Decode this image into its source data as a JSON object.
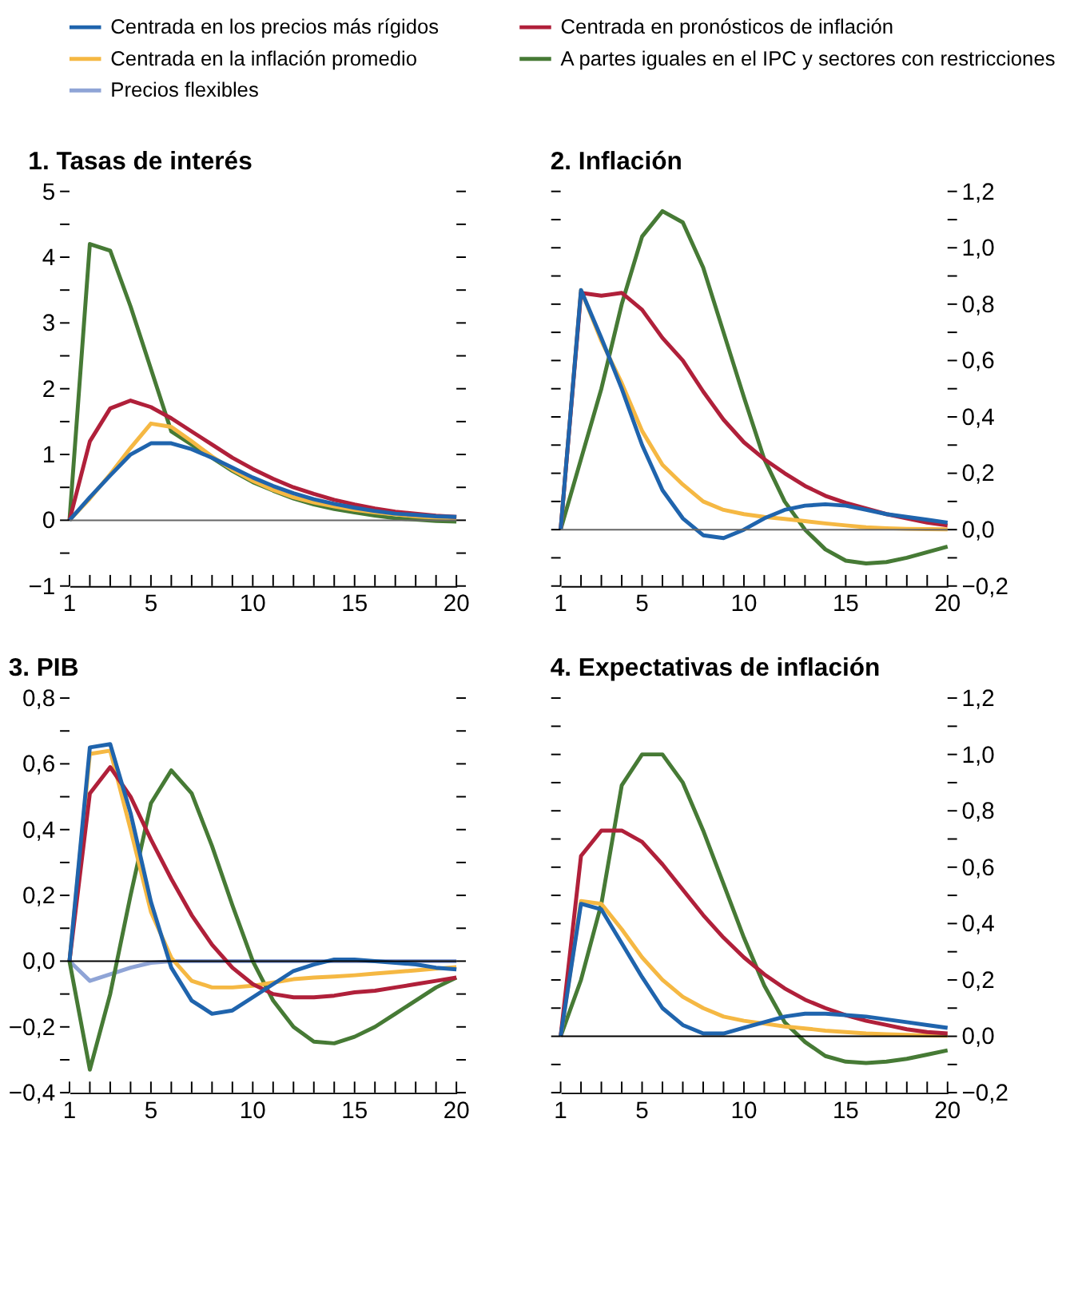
{
  "chart_data": [
    {
      "type": "line",
      "title": "1. Tasas de interés",
      "legend": "top",
      "grid": false,
      "line_style": "solid",
      "x": [
        1,
        2,
        3,
        4,
        5,
        6,
        7,
        8,
        9,
        10,
        11,
        12,
        13,
        14,
        15,
        16,
        17,
        18,
        19,
        20
      ],
      "xlim": [
        1,
        20
      ],
      "xticks": [
        1,
        {
          "value": 2,
          "label": null
        },
        {
          "value": 3,
          "label": null
        },
        {
          "value": 4,
          "label": null
        },
        5,
        {
          "value": 6,
          "label": null
        },
        {
          "value": 7,
          "label": null
        },
        {
          "value": 8,
          "label": null
        },
        {
          "value": 9,
          "label": null
        },
        10,
        {
          "value": 11,
          "label": null
        },
        {
          "value": 12,
          "label": null
        },
        {
          "value": 13,
          "label": null
        },
        {
          "value": 14,
          "label": null
        },
        15,
        {
          "value": 16,
          "label": null
        },
        {
          "value": 17,
          "label": null
        },
        {
          "value": 18,
          "label": null
        },
        {
          "value": 19,
          "label": null
        },
        20
      ],
      "ylim": [
        -1,
        5
      ],
      "yticks": [
        {
          "value": -1,
          "label": "−1"
        },
        {
          "value": -0.5,
          "label": null
        },
        0,
        {
          "value": 0.5,
          "label": null
        },
        1,
        {
          "value": 1.5,
          "label": null
        },
        2,
        {
          "value": 2.5,
          "label": null
        },
        3,
        {
          "value": 3.5,
          "label": null
        },
        4,
        {
          "value": 4.5,
          "label": null
        },
        5
      ],
      "ref_lines": [
        {
          "axis": "y",
          "value": 0,
          "color": "#666666"
        }
      ],
      "series": [
        {
          "name": "Centrada en los precios más rígidos",
          "color": "#1f64ad",
          "values": [
            0,
            0.35,
            0.68,
            1.0,
            1.17,
            1.17,
            1.08,
            0.95,
            0.8,
            0.65,
            0.52,
            0.41,
            0.32,
            0.25,
            0.19,
            0.14,
            0.1,
            0.08,
            0.06,
            0.05
          ]
        },
        {
          "name": "Centrada en pronósticos de inflación",
          "color": "#b0203a",
          "values": [
            0,
            1.2,
            1.7,
            1.82,
            1.72,
            1.55,
            1.35,
            1.15,
            0.95,
            0.78,
            0.63,
            0.5,
            0.4,
            0.31,
            0.24,
            0.18,
            0.13,
            0.1,
            0.07,
            0.05
          ]
        },
        {
          "name": "Centrada en la inflación promedio",
          "color": "#f5b843",
          "values": [
            0,
            0.33,
            0.7,
            1.1,
            1.47,
            1.42,
            1.2,
            0.97,
            0.77,
            0.6,
            0.46,
            0.35,
            0.27,
            0.21,
            0.16,
            0.12,
            0.09,
            0.06,
            0.04,
            0.03
          ]
        },
        {
          "name": "A partes iguales en el IPC y sectores con restricciones",
          "color": "#467a35",
          "values": [
            0,
            4.2,
            4.1,
            3.25,
            2.3,
            1.35,
            1.15,
            0.95,
            0.75,
            0.58,
            0.45,
            0.33,
            0.24,
            0.17,
            0.12,
            0.07,
            0.03,
            0.01,
            -0.01,
            -0.02
          ]
        }
      ]
    },
    {
      "type": "line",
      "title": "2. Inflación",
      "grid": false,
      "line_style": "solid",
      "x": [
        1,
        2,
        3,
        4,
        5,
        6,
        7,
        8,
        9,
        10,
        11,
        12,
        13,
        14,
        15,
        16,
        17,
        18,
        19,
        20
      ],
      "xlim": [
        1,
        20
      ],
      "xticks": [
        1,
        {
          "value": 2,
          "label": null
        },
        {
          "value": 3,
          "label": null
        },
        {
          "value": 4,
          "label": null
        },
        5,
        {
          "value": 6,
          "label": null
        },
        {
          "value": 7,
          "label": null
        },
        {
          "value": 8,
          "label": null
        },
        {
          "value": 9,
          "label": null
        },
        10,
        {
          "value": 11,
          "label": null
        },
        {
          "value": 12,
          "label": null
        },
        {
          "value": 13,
          "label": null
        },
        {
          "value": 14,
          "label": null
        },
        15,
        {
          "value": 16,
          "label": null
        },
        {
          "value": 17,
          "label": null
        },
        {
          "value": 18,
          "label": null
        },
        {
          "value": 19,
          "label": null
        },
        20
      ],
      "ylim": [
        -0.2,
        1.2
      ],
      "yticks": [
        {
          "value": -0.2,
          "label": "−0,2"
        },
        {
          "value": -0.1,
          "label": null
        },
        {
          "value": 0,
          "label": "0,0"
        },
        {
          "value": 0.1,
          "label": null
        },
        {
          "value": 0.2,
          "label": "0,2"
        },
        {
          "value": 0.3,
          "label": null
        },
        {
          "value": 0.4,
          "label": "0,4"
        },
        {
          "value": 0.5,
          "label": null
        },
        {
          "value": 0.6,
          "label": "0,6"
        },
        {
          "value": 0.7,
          "label": null
        },
        {
          "value": 0.8,
          "label": "0,8"
        },
        {
          "value": 0.9,
          "label": null
        },
        {
          "value": 1.0,
          "label": "1,0"
        },
        {
          "value": 1.1,
          "label": null
        },
        {
          "value": 1.2,
          "label": "1,2"
        }
      ],
      "ref_lines": [
        {
          "axis": "y",
          "value": 0,
          "color": "#666666"
        }
      ],
      "series": [
        {
          "name": "Centrada en los precios más rígidos",
          "color": "#1f64ad",
          "values": [
            0,
            0.85,
            0.68,
            0.5,
            0.3,
            0.14,
            0.04,
            -0.02,
            -0.03,
            0.0,
            0.04,
            0.07,
            0.085,
            0.09,
            0.085,
            0.07,
            0.055,
            0.045,
            0.035,
            0.025
          ]
        },
        {
          "name": "Centrada en pronósticos de inflación",
          "color": "#b0203a",
          "values": [
            0,
            0.84,
            0.83,
            0.84,
            0.78,
            0.68,
            0.6,
            0.49,
            0.39,
            0.31,
            0.25,
            0.2,
            0.155,
            0.12,
            0.095,
            0.075,
            0.055,
            0.04,
            0.025,
            0.015
          ]
        },
        {
          "name": "Centrada en la inflación promedio",
          "color": "#f5b843",
          "values": [
            0,
            0.85,
            0.67,
            0.52,
            0.35,
            0.23,
            0.16,
            0.1,
            0.07,
            0.055,
            0.045,
            0.038,
            0.03,
            0.022,
            0.015,
            0.008,
            0.005,
            0.003,
            0.002,
            0.001
          ]
        },
        {
          "name": "A partes iguales en el IPC y sectores con restricciones",
          "color": "#467a35",
          "values": [
            0,
            0.25,
            0.5,
            0.8,
            1.04,
            1.13,
            1.09,
            0.93,
            0.7,
            0.47,
            0.25,
            0.1,
            0.0,
            -0.07,
            -0.11,
            -0.12,
            -0.115,
            -0.1,
            -0.08,
            -0.06
          ]
        }
      ]
    },
    {
      "type": "line",
      "title": "3. PIB",
      "grid": false,
      "line_style": "solid",
      "x": [
        1,
        2,
        3,
        4,
        5,
        6,
        7,
        8,
        9,
        10,
        11,
        12,
        13,
        14,
        15,
        16,
        17,
        18,
        19,
        20
      ],
      "xlim": [
        1,
        20
      ],
      "xticks": [
        1,
        {
          "value": 2,
          "label": null
        },
        {
          "value": 3,
          "label": null
        },
        {
          "value": 4,
          "label": null
        },
        5,
        {
          "value": 6,
          "label": null
        },
        {
          "value": 7,
          "label": null
        },
        {
          "value": 8,
          "label": null
        },
        {
          "value": 9,
          "label": null
        },
        10,
        {
          "value": 11,
          "label": null
        },
        {
          "value": 12,
          "label": null
        },
        {
          "value": 13,
          "label": null
        },
        {
          "value": 14,
          "label": null
        },
        15,
        {
          "value": 16,
          "label": null
        },
        {
          "value": 17,
          "label": null
        },
        {
          "value": 18,
          "label": null
        },
        {
          "value": 19,
          "label": null
        },
        20
      ],
      "ylim": [
        -0.4,
        0.8
      ],
      "yticks": [
        {
          "value": -0.4,
          "label": "−0,4"
        },
        {
          "value": -0.3,
          "label": null
        },
        {
          "value": -0.2,
          "label": "−0,2"
        },
        {
          "value": -0.1,
          "label": null
        },
        {
          "value": 0,
          "label": "0,0"
        },
        {
          "value": 0.1,
          "label": null
        },
        {
          "value": 0.2,
          "label": "0,2"
        },
        {
          "value": 0.3,
          "label": null
        },
        {
          "value": 0.4,
          "label": "0,4"
        },
        {
          "value": 0.5,
          "label": null
        },
        {
          "value": 0.6,
          "label": "0,6"
        },
        {
          "value": 0.7,
          "label": null
        },
        {
          "value": 0.8,
          "label": "0,8"
        }
      ],
      "ref_lines": [
        {
          "axis": "y",
          "value": 0,
          "color": "#000000"
        }
      ],
      "series": [
        {
          "name": "Centrada en los precios más rígidos",
          "color": "#1f64ad",
          "values": [
            0,
            0.65,
            0.66,
            0.45,
            0.18,
            -0.02,
            -0.12,
            -0.16,
            -0.15,
            -0.11,
            -0.07,
            -0.03,
            -0.01,
            0.005,
            0.005,
            0.0,
            -0.005,
            -0.01,
            -0.02,
            -0.025
          ]
        },
        {
          "name": "Centrada en pronósticos de inflación",
          "color": "#b0203a",
          "values": [
            0,
            0.51,
            0.59,
            0.5,
            0.37,
            0.25,
            0.14,
            0.05,
            -0.02,
            -0.07,
            -0.1,
            -0.11,
            -0.11,
            -0.105,
            -0.095,
            -0.09,
            -0.08,
            -0.07,
            -0.06,
            -0.05
          ]
        },
        {
          "name": "Centrada en la inflación promedio",
          "color": "#f5b843",
          "values": [
            0,
            0.63,
            0.64,
            0.4,
            0.15,
            0.01,
            -0.06,
            -0.08,
            -0.08,
            -0.075,
            -0.065,
            -0.055,
            -0.05,
            -0.047,
            -0.043,
            -0.038,
            -0.033,
            -0.028,
            -0.023,
            -0.018
          ]
        },
        {
          "name": "A partes iguales en el IPC y sectores con restricciones",
          "color": "#467a35",
          "values": [
            0,
            -0.33,
            -0.1,
            0.2,
            0.48,
            0.58,
            0.51,
            0.35,
            0.17,
            0.0,
            -0.12,
            -0.2,
            -0.245,
            -0.25,
            -0.23,
            -0.2,
            -0.16,
            -0.12,
            -0.08,
            -0.05
          ]
        },
        {
          "name": "Precios flexibles",
          "color": "#8fa4d6",
          "values": [
            0,
            -0.06,
            -0.04,
            -0.02,
            -0.005,
            0,
            0,
            0,
            0,
            0,
            0,
            0,
            0,
            0,
            0,
            0,
            0,
            0,
            0,
            0
          ]
        }
      ]
    },
    {
      "type": "line",
      "title": "4. Expectativas de inflación",
      "grid": false,
      "line_style": "solid",
      "x": [
        1,
        2,
        3,
        4,
        5,
        6,
        7,
        8,
        9,
        10,
        11,
        12,
        13,
        14,
        15,
        16,
        17,
        18,
        19,
        20
      ],
      "xlim": [
        1,
        20
      ],
      "xticks": [
        1,
        {
          "value": 2,
          "label": null
        },
        {
          "value": 3,
          "label": null
        },
        {
          "value": 4,
          "label": null
        },
        5,
        {
          "value": 6,
          "label": null
        },
        {
          "value": 7,
          "label": null
        },
        {
          "value": 8,
          "label": null
        },
        {
          "value": 9,
          "label": null
        },
        10,
        {
          "value": 11,
          "label": null
        },
        {
          "value": 12,
          "label": null
        },
        {
          "value": 13,
          "label": null
        },
        {
          "value": 14,
          "label": null
        },
        15,
        {
          "value": 16,
          "label": null
        },
        {
          "value": 17,
          "label": null
        },
        {
          "value": 18,
          "label": null
        },
        {
          "value": 19,
          "label": null
        },
        20
      ],
      "ylim": [
        -0.2,
        1.2
      ],
      "yticks": [
        {
          "value": -0.2,
          "label": "−0,2"
        },
        {
          "value": -0.1,
          "label": null
        },
        {
          "value": 0,
          "label": "0,0"
        },
        {
          "value": 0.1,
          "label": null
        },
        {
          "value": 0.2,
          "label": "0,2"
        },
        {
          "value": 0.3,
          "label": null
        },
        {
          "value": 0.4,
          "label": "0,4"
        },
        {
          "value": 0.5,
          "label": null
        },
        {
          "value": 0.6,
          "label": "0,6"
        },
        {
          "value": 0.7,
          "label": null
        },
        {
          "value": 0.8,
          "label": "0,8"
        },
        {
          "value": 0.9,
          "label": null
        },
        {
          "value": 1.0,
          "label": "1,0"
        },
        {
          "value": 1.1,
          "label": null
        },
        {
          "value": 1.2,
          "label": "1,2"
        }
      ],
      "ref_lines": [
        {
          "axis": "y",
          "value": 0,
          "color": "#000000"
        }
      ],
      "series": [
        {
          "name": "Centrada en los precios más rígidos",
          "color": "#1f64ad",
          "values": [
            0,
            0.47,
            0.45,
            0.33,
            0.21,
            0.1,
            0.04,
            0.01,
            0.01,
            0.03,
            0.05,
            0.07,
            0.08,
            0.08,
            0.075,
            0.07,
            0.06,
            0.05,
            0.04,
            0.03
          ]
        },
        {
          "name": "Centrada en pronósticos de inflación",
          "color": "#b0203a",
          "values": [
            0,
            0.64,
            0.73,
            0.73,
            0.69,
            0.61,
            0.52,
            0.43,
            0.35,
            0.28,
            0.22,
            0.17,
            0.13,
            0.1,
            0.075,
            0.055,
            0.04,
            0.025,
            0.015,
            0.01
          ]
        },
        {
          "name": "Centrada en la inflación promedio",
          "color": "#f5b843",
          "values": [
            0,
            0.48,
            0.47,
            0.38,
            0.28,
            0.2,
            0.14,
            0.1,
            0.07,
            0.055,
            0.045,
            0.035,
            0.028,
            0.02,
            0.015,
            0.01,
            0.007,
            0.005,
            0.003,
            0.002
          ]
        },
        {
          "name": "A partes iguales en el IPC y sectores con restricciones",
          "color": "#467a35",
          "values": [
            0,
            0.2,
            0.47,
            0.89,
            1.0,
            1.0,
            0.9,
            0.73,
            0.54,
            0.35,
            0.18,
            0.05,
            -0.02,
            -0.07,
            -0.09,
            -0.095,
            -0.09,
            -0.08,
            -0.065,
            -0.05
          ]
        }
      ]
    }
  ]
}
